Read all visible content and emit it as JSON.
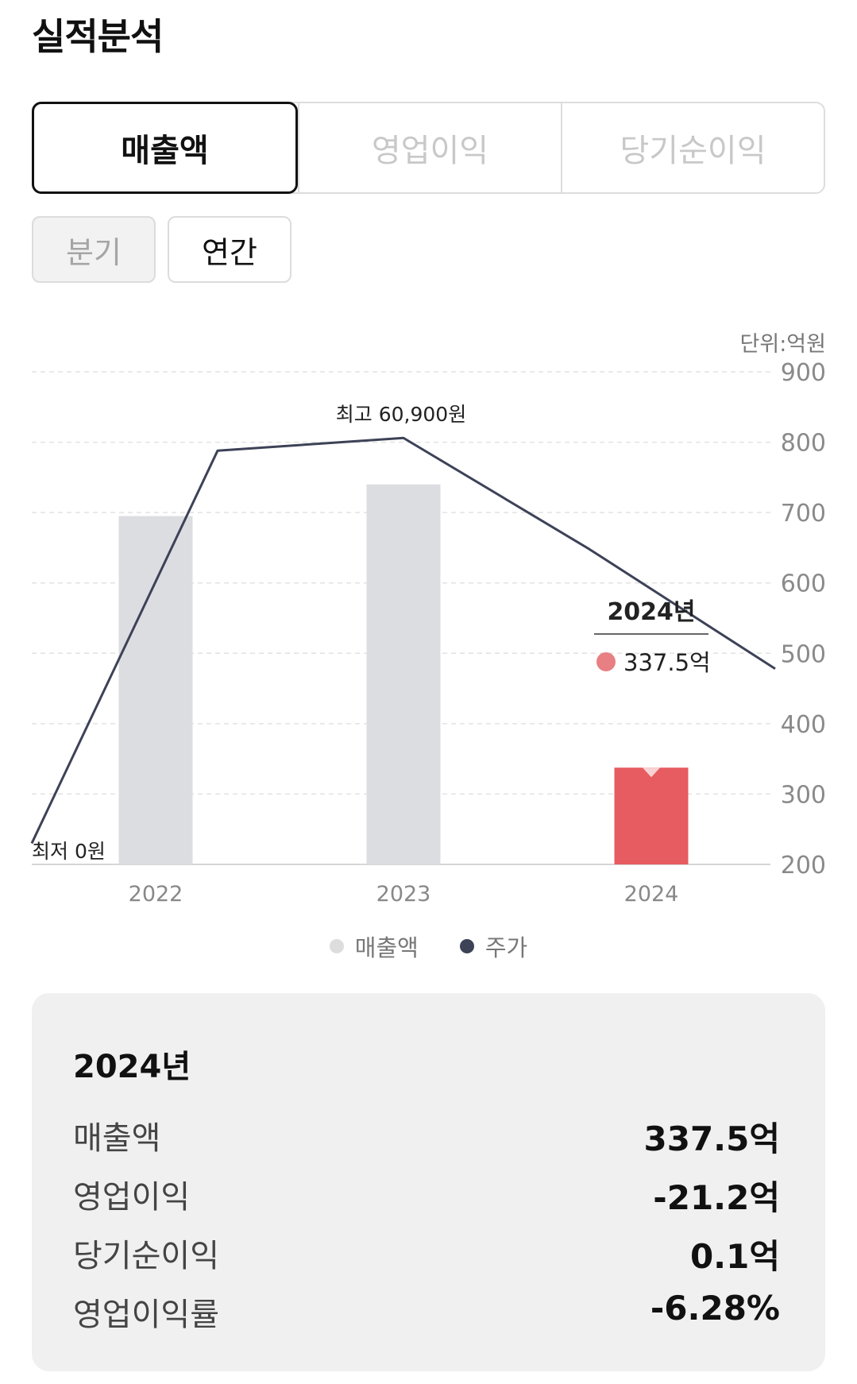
{
  "title": "실적분석",
  "metric_tabs": [
    {
      "label": "매출액",
      "active": true
    },
    {
      "label": "영업이익",
      "active": false
    },
    {
      "label": "당기순이익",
      "active": false
    }
  ],
  "period_tabs": [
    {
      "label": "분기",
      "active": false
    },
    {
      "label": "연간",
      "active": true
    }
  ],
  "chart_data": {
    "type": "bar",
    "unit_label": "단위:억원",
    "categories": [
      "2022",
      "2023",
      "2024"
    ],
    "y_ticks": [
      "900",
      "800",
      "700",
      "600",
      "500",
      "400",
      "300",
      "200"
    ],
    "ylim": [
      200,
      900
    ],
    "grid": true,
    "series": [
      {
        "name": "매출액",
        "kind": "bar",
        "values": [
          695,
          740,
          337.5
        ],
        "color": "#dcdde1",
        "highlight_color": "#e65c60"
      },
      {
        "name": "주가",
        "kind": "line",
        "color": "#3d4257",
        "points": [
          [
            -0.5,
            230
          ],
          [
            0.25,
            788
          ],
          [
            1.0,
            806
          ],
          [
            1.75,
            648
          ],
          [
            2.5,
            478
          ]
        ]
      }
    ],
    "annotations": {
      "high": "최고 60,900원",
      "low": "최저 0원"
    },
    "tooltip": {
      "title": "2024년",
      "value": "337.5억",
      "dot_color": "#e87f82"
    }
  },
  "legend": [
    {
      "label": "매출액",
      "color": "#dddddd"
    },
    {
      "label": "주가",
      "color": "#3d4257"
    }
  ],
  "summary": {
    "year": "2024년",
    "rows": [
      {
        "label": "매출액",
        "value": "337.5억"
      },
      {
        "label": "영업이익",
        "value": "-21.2억"
      },
      {
        "label": "당기순이익",
        "value": "0.1억"
      },
      {
        "label": "영업이익률",
        "value": "-6.28%"
      }
    ]
  }
}
